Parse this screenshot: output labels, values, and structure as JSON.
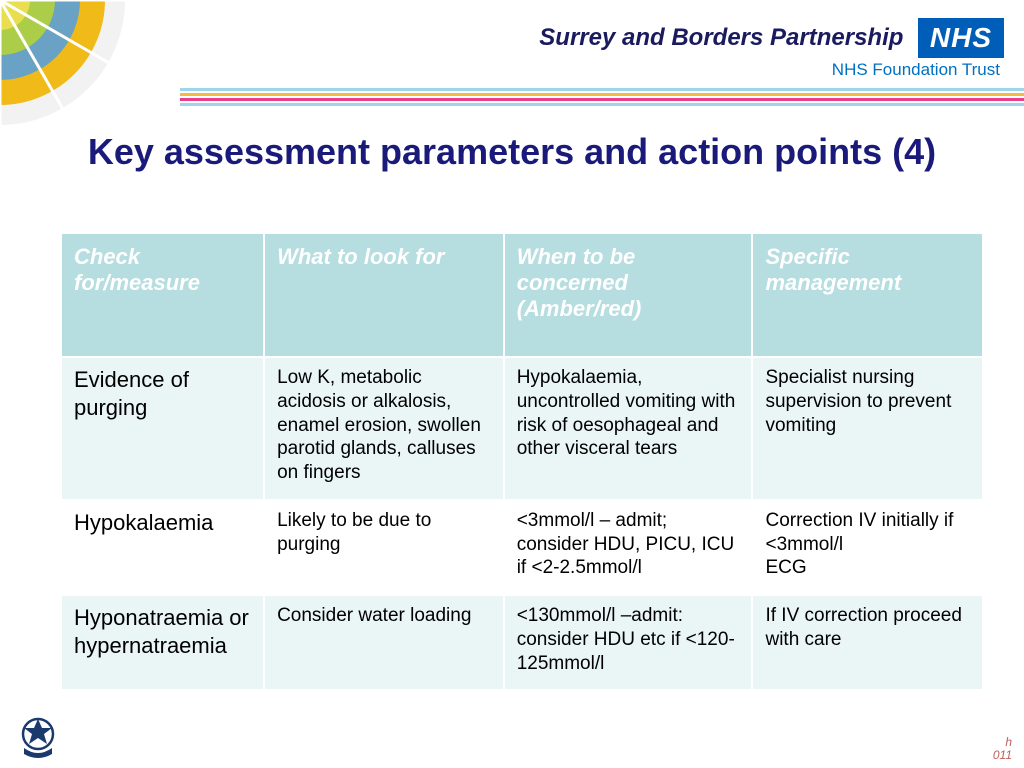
{
  "header": {
    "trust_name": "Surrey and Borders Partnership",
    "nhs": "NHS",
    "foundation": "NHS Foundation Trust"
  },
  "stripes": [
    "#9fd4eb",
    "#f5b942",
    "#e83e8c",
    "#9fd4eb"
  ],
  "corner_rings": [
    {
      "r": 125,
      "fill": "#eaeaea"
    },
    {
      "r": 105,
      "fill": "#f0b400"
    },
    {
      "r": 80,
      "fill": "#5aa0d8"
    },
    {
      "r": 55,
      "fill": "#b4d23a"
    },
    {
      "r": 30,
      "fill": "#f0e050"
    }
  ],
  "title": "Key assessment parameters and action points (4)",
  "table": {
    "columns": [
      "Check for/measure",
      "What to look for",
      "When to be concerned (Amber/red)",
      "Specific management"
    ],
    "col_widths": [
      "22%",
      "26%",
      "27%",
      "25%"
    ],
    "header_bg": "#b6dde0",
    "header_fg": "#ffffff",
    "row_odd_bg": "#eaf5f6",
    "row_even_bg": "#ffffff",
    "rows": [
      [
        "Evidence of purging",
        "Low K, metabolic acidosis or alkalosis, enamel erosion, swollen parotid glands, calluses on fingers",
        "Hypokalaemia, uncontrolled vomiting with risk of oesophageal and other visceral tears",
        "Specialist nursing supervision to prevent vomiting"
      ],
      [
        "Hypokalaemia",
        "Likely to be due to purging",
        "<3mmol/l – admit; consider HDU, PICU, ICU if <2-2.5mmol/l",
        "Correction IV initially if <3mmol/l\nECG"
      ],
      [
        "Hyponatraemia or hypernatraemia",
        "Consider water loading",
        "<130mmol/l –admit: consider HDU etc if <120-125mmol/l",
        "If IV correction proceed with care"
      ]
    ]
  },
  "footer": {
    "line1": "h",
    "line2": "011"
  }
}
